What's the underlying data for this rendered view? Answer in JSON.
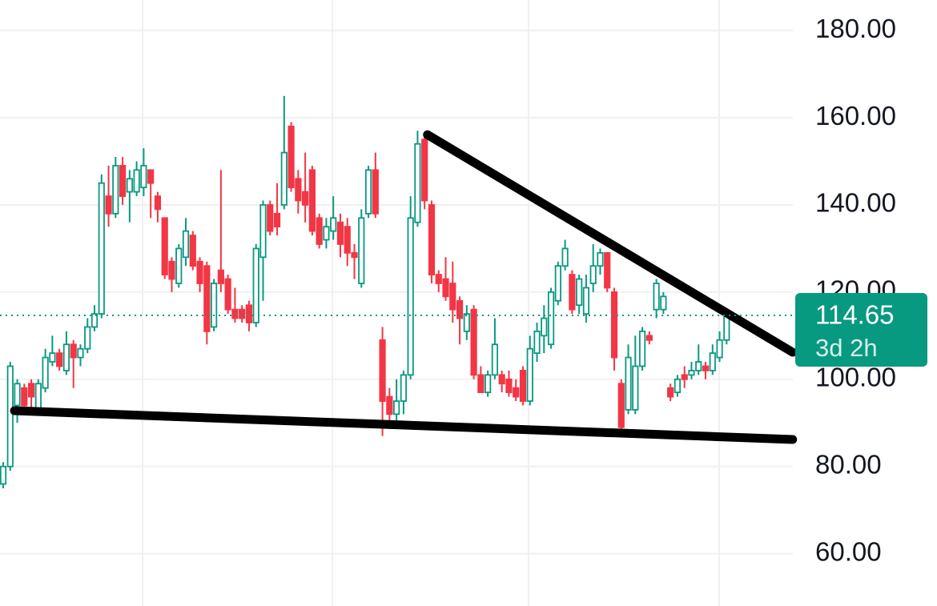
{
  "chart_data": {
    "type": "candlestick",
    "open": [
      76,
      80,
      94,
      98,
      99,
      93,
      98,
      104,
      106,
      102,
      108,
      105,
      107,
      112,
      115,
      142,
      138,
      149,
      143,
      143,
      144,
      148,
      142,
      137,
      127,
      122,
      128,
      133,
      127,
      126,
      112,
      125,
      123,
      116,
      116,
      117,
      113,
      128,
      140,
      138,
      140,
      158,
      146,
      143,
      148,
      137,
      132,
      134,
      136,
      135,
      129,
      122,
      138,
      148,
      109,
      96,
      92,
      95,
      101,
      136,
      155,
      140,
      124,
      123,
      122,
      118,
      111,
      116,
      101,
      97,
      101,
      101,
      100,
      98,
      102,
      95,
      106,
      110,
      108,
      118,
      126,
      124,
      117,
      115,
      122,
      126,
      129,
      120,
      99,
      93,
      93,
      103,
      110,
      116,
      116,
      98,
      97,
      101,
      101,
      102,
      103,
      102,
      105,
      109
    ],
    "high": [
      81,
      104,
      100,
      99,
      100,
      100,
      107,
      110,
      107,
      111,
      109,
      108,
      114,
      117,
      147,
      149,
      151,
      151,
      148,
      150,
      153,
      148,
      143,
      137,
      128,
      131,
      137,
      134,
      128,
      127,
      123,
      148,
      124,
      121,
      117,
      118,
      131,
      141,
      141,
      145,
      165,
      159,
      148,
      152,
      149,
      138,
      137,
      142,
      138,
      137,
      131,
      139,
      149,
      152,
      112,
      98,
      100,
      102,
      142,
      157,
      156,
      141,
      125,
      128,
      127,
      119,
      117,
      117,
      103,
      102,
      114,
      102,
      102,
      100,
      103,
      110,
      113,
      117,
      121,
      127,
      132,
      125,
      124,
      124,
      131,
      130,
      129,
      121,
      100,
      108,
      110,
      112,
      111,
      123,
      120,
      99,
      101,
      103,
      104,
      108,
      104,
      108,
      111,
      116
    ],
    "low": [
      75,
      79,
      90,
      93,
      92,
      93,
      97,
      103,
      102,
      101,
      98,
      103,
      106,
      111,
      114,
      135,
      137,
      140,
      136,
      142,
      142,
      137,
      136,
      123,
      120,
      121,
      126,
      125,
      120,
      108,
      111,
      120,
      115,
      113,
      113,
      111,
      112,
      118,
      133,
      133,
      139,
      143,
      138,
      136,
      133,
      130,
      130,
      132,
      128,
      126,
      123,
      121,
      137,
      137,
      87,
      90,
      90,
      92,
      100,
      135,
      139,
      122,
      120,
      118,
      113,
      108,
      109,
      100,
      97,
      96,
      100,
      97,
      96,
      95,
      94,
      94,
      104,
      106,
      107,
      117,
      125,
      115,
      115,
      113,
      120,
      124,
      120,
      102,
      87,
      92,
      92,
      102,
      108,
      114,
      115,
      95,
      96,
      98,
      100,
      101,
      100,
      101,
      104,
      108
    ],
    "close": [
      80,
      103,
      99,
      94,
      96,
      99,
      105,
      106,
      103,
      108,
      105,
      107,
      112,
      115,
      145,
      138,
      149,
      142,
      146,
      148,
      149,
      145,
      139,
      124,
      123,
      130,
      134,
      126,
      122,
      111,
      122,
      122,
      116,
      114,
      114,
      113,
      130,
      140,
      134,
      135,
      152,
      144,
      141,
      140,
      134,
      131,
      135,
      137,
      131,
      129,
      128,
      137,
      148,
      138,
      95,
      92,
      95,
      101,
      137,
      154,
      141,
      124,
      122,
      119,
      116,
      114,
      115,
      101,
      97,
      101,
      108,
      99,
      97,
      96,
      95,
      107,
      111,
      114,
      120,
      126,
      130,
      116,
      123,
      121,
      126,
      129,
      121,
      105,
      89,
      105,
      103,
      111,
      109,
      122,
      119,
      96,
      100,
      100,
      102,
      104,
      102,
      106,
      109,
      114.65
    ],
    "up_color": "#089981",
    "down_color": "#f23645",
    "ylim": [
      48,
      187
    ],
    "yticks": [
      {
        "value": 60,
        "label": "60.00"
      },
      {
        "value": 80,
        "label": "80.00"
      },
      {
        "value": 100,
        "label": "100.00"
      },
      {
        "value": 120,
        "label": "120.00"
      },
      {
        "value": 140,
        "label": "140.00"
      },
      {
        "value": 160,
        "label": "160.00"
      },
      {
        "value": 180,
        "label": "180.00"
      }
    ],
    "grid": true,
    "last_price": 114.65,
    "countdown": "3d 2h",
    "trendlines": [
      {
        "x": [
          60.4,
          112.4
        ],
        "y": [
          156.1,
          106.2
        ]
      },
      {
        "x": [
          1.6,
          112.4
        ],
        "y": [
          92.8,
          86.2
        ]
      }
    ]
  }
}
